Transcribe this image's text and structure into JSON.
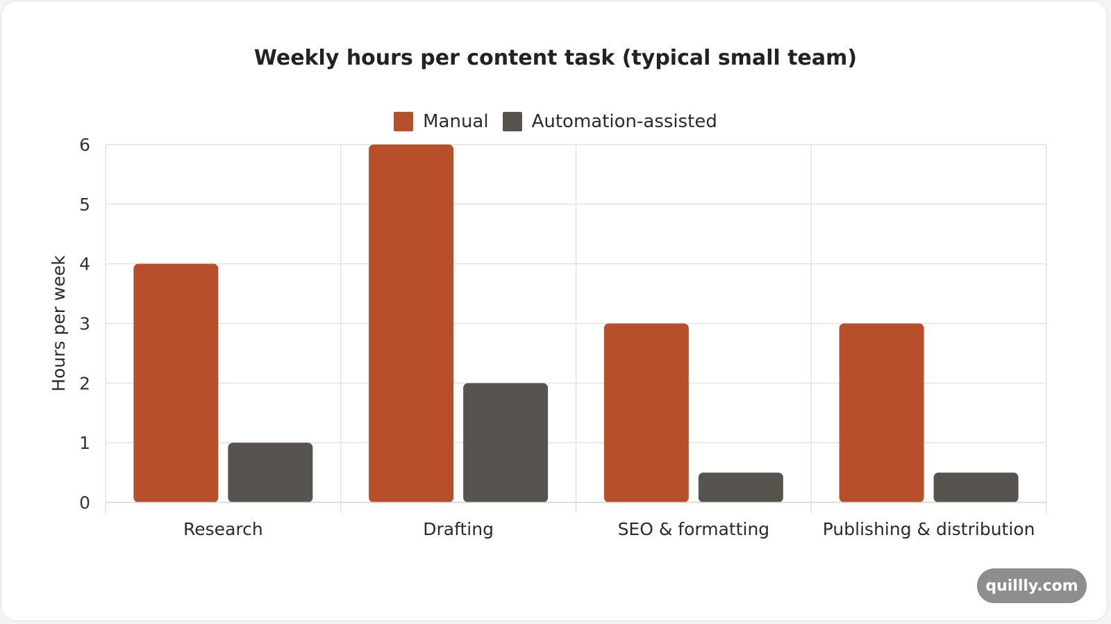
{
  "chart_data": {
    "type": "bar",
    "title": "Weekly hours per content task (typical small team)",
    "ylabel": "Hours per week",
    "xlabel": "",
    "categories": [
      "Research",
      "Drafting",
      "SEO & formatting",
      "Publishing & distribution"
    ],
    "series": [
      {
        "name": "Manual",
        "values": [
          4,
          6,
          3,
          3
        ],
        "color": "#b84f2b"
      },
      {
        "name": "Automation-assisted",
        "values": [
          1,
          2,
          0.5,
          0.5
        ],
        "color": "#57534e"
      }
    ],
    "ylim": [
      0,
      6
    ],
    "yticks": [
      "0",
      "1",
      "2",
      "3",
      "4",
      "5",
      "6"
    ],
    "grid": true,
    "legend_position": "top-center"
  },
  "watermark": {
    "label": "quillly.com"
  }
}
